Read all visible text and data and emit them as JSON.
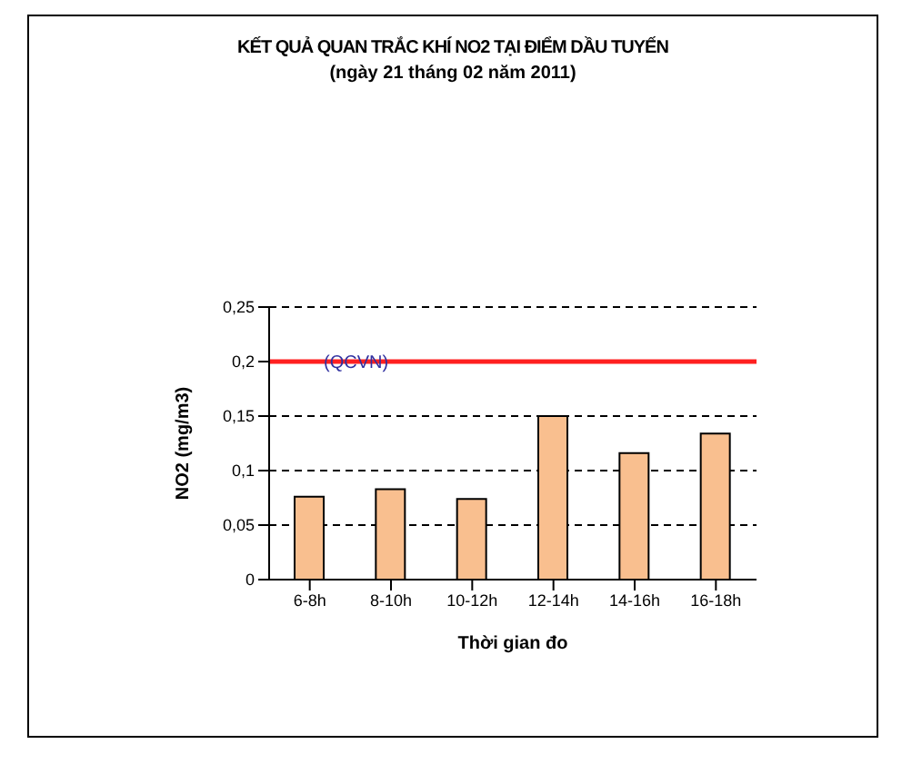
{
  "chart_data": {
    "type": "bar",
    "title": "KẾT QUẢ QUAN TRẮC KHÍ NO2 TẠI ĐIỂM DẦU TUYẾN",
    "subtitle": "(ngày 21 tháng 02 năm 2011)",
    "xlabel": "Thời gian đo",
    "ylabel": "NO2 (mg/m3)",
    "categories": [
      "6-8h",
      "8-10h",
      "10-12h",
      "12-14h",
      "14-16h",
      "16-18h"
    ],
    "values": [
      0.076,
      0.083,
      0.074,
      0.15,
      0.116,
      0.134
    ],
    "color": "#f9bf8f",
    "ylim": [
      0,
      0.25
    ],
    "yticks": [
      0,
      {
        "value": 0.05,
        "label": "0,05"
      },
      {
        "value": 0.1,
        "label": "0,1"
      },
      {
        "value": 0.15,
        "label": "0,15"
      },
      {
        "value": 0.2,
        "label": "0,2"
      },
      {
        "value": 0.25,
        "label": "0,25"
      }
    ],
    "grid": "y",
    "ref_lines": [
      {
        "axis": "y",
        "value": 0.2,
        "label": "(QCVN)",
        "color": "#ff2020"
      }
    ]
  }
}
